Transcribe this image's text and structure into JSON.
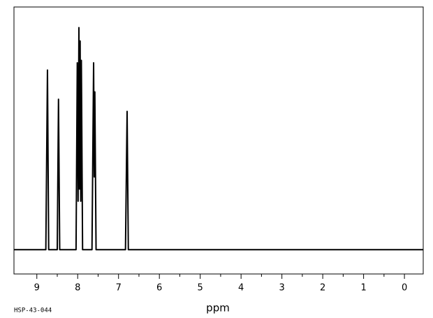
{
  "chart_data": {
    "type": "line",
    "x_label": "ppm",
    "sample_code": "HSP-43-044",
    "x": [
      9.56,
      8.78,
      8.74,
      8.71,
      8.5,
      8.47,
      8.44,
      8.04,
      8.01,
      7.99,
      7.97,
      7.955,
      7.94,
      7.925,
      7.91,
      7.88,
      7.65,
      7.61,
      7.595,
      7.58,
      7.55,
      6.83,
      6.79,
      6.76,
      -0.46
    ],
    "values": [
      0,
      0,
      74,
      0,
      0,
      62,
      0,
      0,
      77,
      20,
      91.5,
      25,
      86,
      20,
      78,
      0,
      0,
      77,
      30,
      65,
      0,
      0,
      57,
      0,
      0
    ],
    "color": "#000000",
    "xlim": [
      9.56,
      -0.46
    ],
    "ylim": [
      -10,
      100
    ],
    "xticks": [
      9,
      8,
      7,
      6,
      5,
      4,
      3,
      2,
      1,
      0
    ],
    "xminorticks": [
      8.5,
      7.5,
      6.5,
      5.5,
      4.5,
      3.5,
      2.5,
      1.5,
      0.5
    ]
  }
}
